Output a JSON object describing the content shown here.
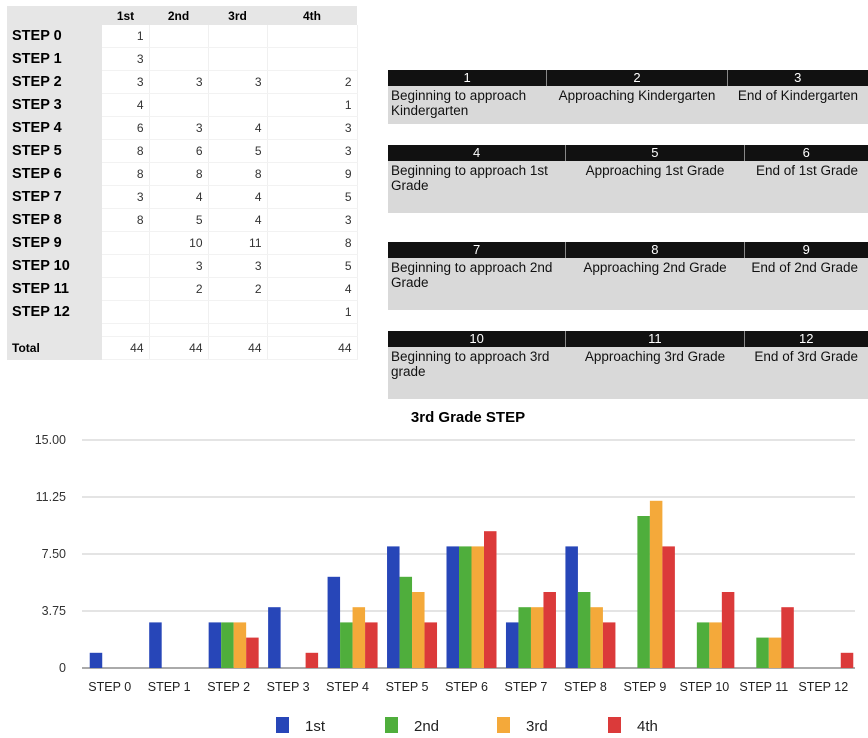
{
  "table": {
    "headers": [
      "",
      "1st",
      "2nd",
      "3rd",
      "4th"
    ],
    "rows": [
      {
        "label": "STEP 0",
        "values": [
          "1",
          "",
          "",
          ""
        ]
      },
      {
        "label": "STEP 1",
        "values": [
          "3",
          "",
          "",
          ""
        ]
      },
      {
        "label": "STEP 2",
        "values": [
          "3",
          "3",
          "3",
          "2"
        ]
      },
      {
        "label": "STEP 3",
        "values": [
          "4",
          "",
          "",
          "1"
        ]
      },
      {
        "label": "STEP 4",
        "values": [
          "6",
          "3",
          "4",
          "3"
        ]
      },
      {
        "label": "STEP 5",
        "values": [
          "8",
          "6",
          "5",
          "3"
        ]
      },
      {
        "label": "STEP 6",
        "values": [
          "8",
          "8",
          "8",
          "9"
        ]
      },
      {
        "label": "STEP 7",
        "values": [
          "3",
          "4",
          "4",
          "5"
        ]
      },
      {
        "label": "STEP 8",
        "values": [
          "8",
          "5",
          "4",
          "3"
        ]
      },
      {
        "label": "STEP 9",
        "values": [
          "",
          "10",
          "11",
          "8"
        ]
      },
      {
        "label": "STEP 10",
        "values": [
          "",
          "3",
          "3",
          "5"
        ]
      },
      {
        "label": "STEP 11",
        "values": [
          "",
          "2",
          "2",
          "4"
        ]
      },
      {
        "label": "STEP 12",
        "values": [
          "",
          "",
          "",
          "1"
        ]
      }
    ],
    "total": {
      "label": "Total",
      "values": [
        "44",
        "44",
        "44",
        "44"
      ]
    }
  },
  "levels": [
    {
      "nums": [
        "1",
        "2",
        "3"
      ],
      "descs": [
        "Beginning to approach Kindergarten",
        "Approaching Kindergarten",
        "End of Kindergarten"
      ]
    },
    {
      "nums": [
        "4",
        "5",
        "6"
      ],
      "descs": [
        "Beginning to approach 1st Grade",
        "Approaching 1st Grade",
        "End of 1st Grade"
      ]
    },
    {
      "nums": [
        "7",
        "8",
        "9"
      ],
      "descs": [
        "Beginning to approach 2nd Grade",
        "Approaching 2nd Grade",
        "End of 2nd Grade"
      ]
    },
    {
      "nums": [
        "10",
        "11",
        "12"
      ],
      "descs": [
        "Beginning to approach 3rd grade",
        "Approaching 3rd Grade",
        "End of 3rd Grade"
      ]
    }
  ],
  "chart_data": {
    "type": "bar",
    "title": "3rd Grade STEP",
    "xlabel": "",
    "ylabel": "",
    "categories": [
      "STEP 0",
      "STEP 1",
      "STEP 2",
      "STEP 3",
      "STEP 4",
      "STEP 5",
      "STEP 6",
      "STEP 7",
      "STEP 8",
      "STEP 9",
      "STEP 10",
      "STEP 11",
      "STEP 12"
    ],
    "series": [
      {
        "name": "1st",
        "color": "#2746b8",
        "values": [
          1,
          3,
          3,
          4,
          6,
          8,
          8,
          3,
          8,
          0,
          0,
          0,
          0
        ]
      },
      {
        "name": "2nd",
        "color": "#4fae3c",
        "values": [
          0,
          0,
          3,
          0,
          3,
          6,
          8,
          4,
          5,
          10,
          3,
          2,
          0
        ]
      },
      {
        "name": "3rd",
        "color": "#f4a93a",
        "values": [
          0,
          0,
          3,
          0,
          4,
          5,
          8,
          4,
          4,
          11,
          3,
          2,
          0
        ]
      },
      {
        "name": "4th",
        "color": "#db3a3a",
        "values": [
          0,
          0,
          2,
          1,
          3,
          3,
          9,
          5,
          3,
          8,
          5,
          4,
          1
        ]
      }
    ],
    "ylim": [
      0,
      15
    ],
    "yticks": [
      0,
      3.75,
      7.5,
      11.25,
      15
    ],
    "ytick_labels": [
      "0",
      "3.75",
      "7.50",
      "11.25",
      "15.00"
    ],
    "grid": true,
    "legend_position": "bottom"
  }
}
